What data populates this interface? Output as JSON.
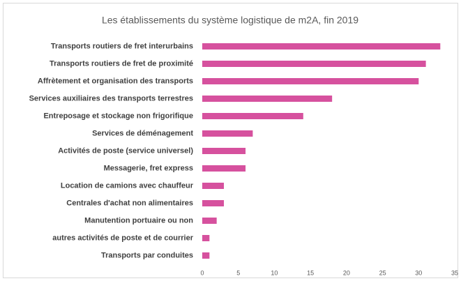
{
  "chart_data": {
    "type": "bar",
    "orientation": "horizontal",
    "title": "Les établissements du système logistique de m2A, fin 2019",
    "categories": [
      "Transports routiers de fret interurbains",
      "Transports routiers de fret de proximité",
      "Affrètement et organisation des transports",
      "Services auxiliaires des transports terrestres",
      "Entreposage et stockage non frigorifique",
      "Services de déménagement",
      "Activités de poste (service universel)",
      "Messagerie, fret express",
      "Location de camions avec chauffeur",
      "Centrales d'achat non alimentaires",
      "Manutention portuaire ou non",
      "autres activités de poste et de courrier",
      "Transports par conduites"
    ],
    "values": [
      33,
      31,
      30,
      18,
      14,
      7,
      6,
      6,
      3,
      3,
      2,
      1,
      1
    ],
    "color": "#d6519e",
    "xlim": [
      0,
      35
    ],
    "xticks": [
      0,
      5,
      10,
      15,
      20,
      25,
      30,
      35
    ],
    "grid": false
  }
}
